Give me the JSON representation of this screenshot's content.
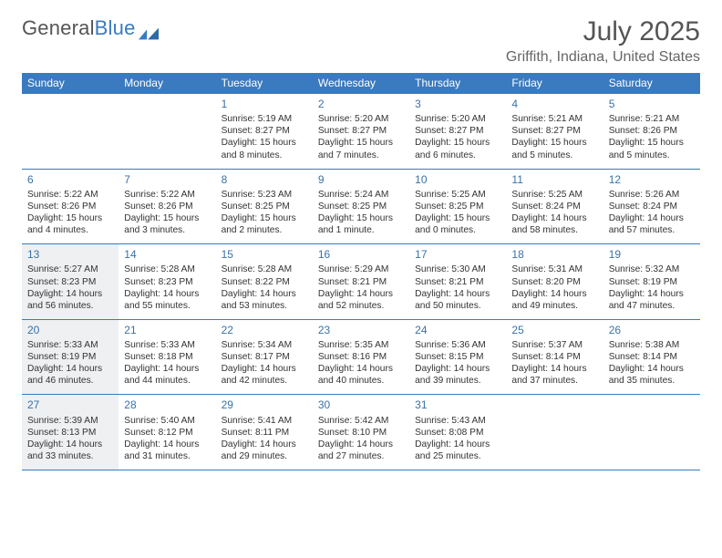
{
  "brand": {
    "part1": "General",
    "part2": "Blue"
  },
  "title": "July 2025",
  "location": "Griffith, Indiana, United States",
  "colors": {
    "header_bg": "#3a7bbf",
    "header_text": "#ffffff",
    "daynum": "#3a72a8",
    "rule": "#3a7bbf",
    "shade": "#eef0f2",
    "page_bg": "#ffffff",
    "body_text": "#333333"
  },
  "dayHeaders": [
    "Sunday",
    "Monday",
    "Tuesday",
    "Wednesday",
    "Thursday",
    "Friday",
    "Saturday"
  ],
  "weeks": [
    [
      {
        "blank": true
      },
      {
        "blank": true
      },
      {
        "n": "1",
        "sr": "Sunrise: 5:19 AM",
        "ss": "Sunset: 8:27 PM",
        "dl": "Daylight: 15 hours and 8 minutes."
      },
      {
        "n": "2",
        "sr": "Sunrise: 5:20 AM",
        "ss": "Sunset: 8:27 PM",
        "dl": "Daylight: 15 hours and 7 minutes."
      },
      {
        "n": "3",
        "sr": "Sunrise: 5:20 AM",
        "ss": "Sunset: 8:27 PM",
        "dl": "Daylight: 15 hours and 6 minutes."
      },
      {
        "n": "4",
        "sr": "Sunrise: 5:21 AM",
        "ss": "Sunset: 8:27 PM",
        "dl": "Daylight: 15 hours and 5 minutes."
      },
      {
        "n": "5",
        "sr": "Sunrise: 5:21 AM",
        "ss": "Sunset: 8:26 PM",
        "dl": "Daylight: 15 hours and 5 minutes."
      }
    ],
    [
      {
        "n": "6",
        "sr": "Sunrise: 5:22 AM",
        "ss": "Sunset: 8:26 PM",
        "dl": "Daylight: 15 hours and 4 minutes."
      },
      {
        "n": "7",
        "sr": "Sunrise: 5:22 AM",
        "ss": "Sunset: 8:26 PM",
        "dl": "Daylight: 15 hours and 3 minutes."
      },
      {
        "n": "8",
        "sr": "Sunrise: 5:23 AM",
        "ss": "Sunset: 8:25 PM",
        "dl": "Daylight: 15 hours and 2 minutes."
      },
      {
        "n": "9",
        "sr": "Sunrise: 5:24 AM",
        "ss": "Sunset: 8:25 PM",
        "dl": "Daylight: 15 hours and 1 minute."
      },
      {
        "n": "10",
        "sr": "Sunrise: 5:25 AM",
        "ss": "Sunset: 8:25 PM",
        "dl": "Daylight: 15 hours and 0 minutes."
      },
      {
        "n": "11",
        "sr": "Sunrise: 5:25 AM",
        "ss": "Sunset: 8:24 PM",
        "dl": "Daylight: 14 hours and 58 minutes."
      },
      {
        "n": "12",
        "sr": "Sunrise: 5:26 AM",
        "ss": "Sunset: 8:24 PM",
        "dl": "Daylight: 14 hours and 57 minutes."
      }
    ],
    [
      {
        "n": "13",
        "sr": "Sunrise: 5:27 AM",
        "ss": "Sunset: 8:23 PM",
        "dl": "Daylight: 14 hours and 56 minutes.",
        "shade": true
      },
      {
        "n": "14",
        "sr": "Sunrise: 5:28 AM",
        "ss": "Sunset: 8:23 PM",
        "dl": "Daylight: 14 hours and 55 minutes."
      },
      {
        "n": "15",
        "sr": "Sunrise: 5:28 AM",
        "ss": "Sunset: 8:22 PM",
        "dl": "Daylight: 14 hours and 53 minutes."
      },
      {
        "n": "16",
        "sr": "Sunrise: 5:29 AM",
        "ss": "Sunset: 8:21 PM",
        "dl": "Daylight: 14 hours and 52 minutes."
      },
      {
        "n": "17",
        "sr": "Sunrise: 5:30 AM",
        "ss": "Sunset: 8:21 PM",
        "dl": "Daylight: 14 hours and 50 minutes."
      },
      {
        "n": "18",
        "sr": "Sunrise: 5:31 AM",
        "ss": "Sunset: 8:20 PM",
        "dl": "Daylight: 14 hours and 49 minutes."
      },
      {
        "n": "19",
        "sr": "Sunrise: 5:32 AM",
        "ss": "Sunset: 8:19 PM",
        "dl": "Daylight: 14 hours and 47 minutes."
      }
    ],
    [
      {
        "n": "20",
        "sr": "Sunrise: 5:33 AM",
        "ss": "Sunset: 8:19 PM",
        "dl": "Daylight: 14 hours and 46 minutes.",
        "shade": true
      },
      {
        "n": "21",
        "sr": "Sunrise: 5:33 AM",
        "ss": "Sunset: 8:18 PM",
        "dl": "Daylight: 14 hours and 44 minutes."
      },
      {
        "n": "22",
        "sr": "Sunrise: 5:34 AM",
        "ss": "Sunset: 8:17 PM",
        "dl": "Daylight: 14 hours and 42 minutes."
      },
      {
        "n": "23",
        "sr": "Sunrise: 5:35 AM",
        "ss": "Sunset: 8:16 PM",
        "dl": "Daylight: 14 hours and 40 minutes."
      },
      {
        "n": "24",
        "sr": "Sunrise: 5:36 AM",
        "ss": "Sunset: 8:15 PM",
        "dl": "Daylight: 14 hours and 39 minutes."
      },
      {
        "n": "25",
        "sr": "Sunrise: 5:37 AM",
        "ss": "Sunset: 8:14 PM",
        "dl": "Daylight: 14 hours and 37 minutes."
      },
      {
        "n": "26",
        "sr": "Sunrise: 5:38 AM",
        "ss": "Sunset: 8:14 PM",
        "dl": "Daylight: 14 hours and 35 minutes."
      }
    ],
    [
      {
        "n": "27",
        "sr": "Sunrise: 5:39 AM",
        "ss": "Sunset: 8:13 PM",
        "dl": "Daylight: 14 hours and 33 minutes.",
        "shade": true
      },
      {
        "n": "28",
        "sr": "Sunrise: 5:40 AM",
        "ss": "Sunset: 8:12 PM",
        "dl": "Daylight: 14 hours and 31 minutes."
      },
      {
        "n": "29",
        "sr": "Sunrise: 5:41 AM",
        "ss": "Sunset: 8:11 PM",
        "dl": "Daylight: 14 hours and 29 minutes."
      },
      {
        "n": "30",
        "sr": "Sunrise: 5:42 AM",
        "ss": "Sunset: 8:10 PM",
        "dl": "Daylight: 14 hours and 27 minutes."
      },
      {
        "n": "31",
        "sr": "Sunrise: 5:43 AM",
        "ss": "Sunset: 8:08 PM",
        "dl": "Daylight: 14 hours and 25 minutes."
      },
      {
        "blank": true
      },
      {
        "blank": true
      }
    ]
  ]
}
